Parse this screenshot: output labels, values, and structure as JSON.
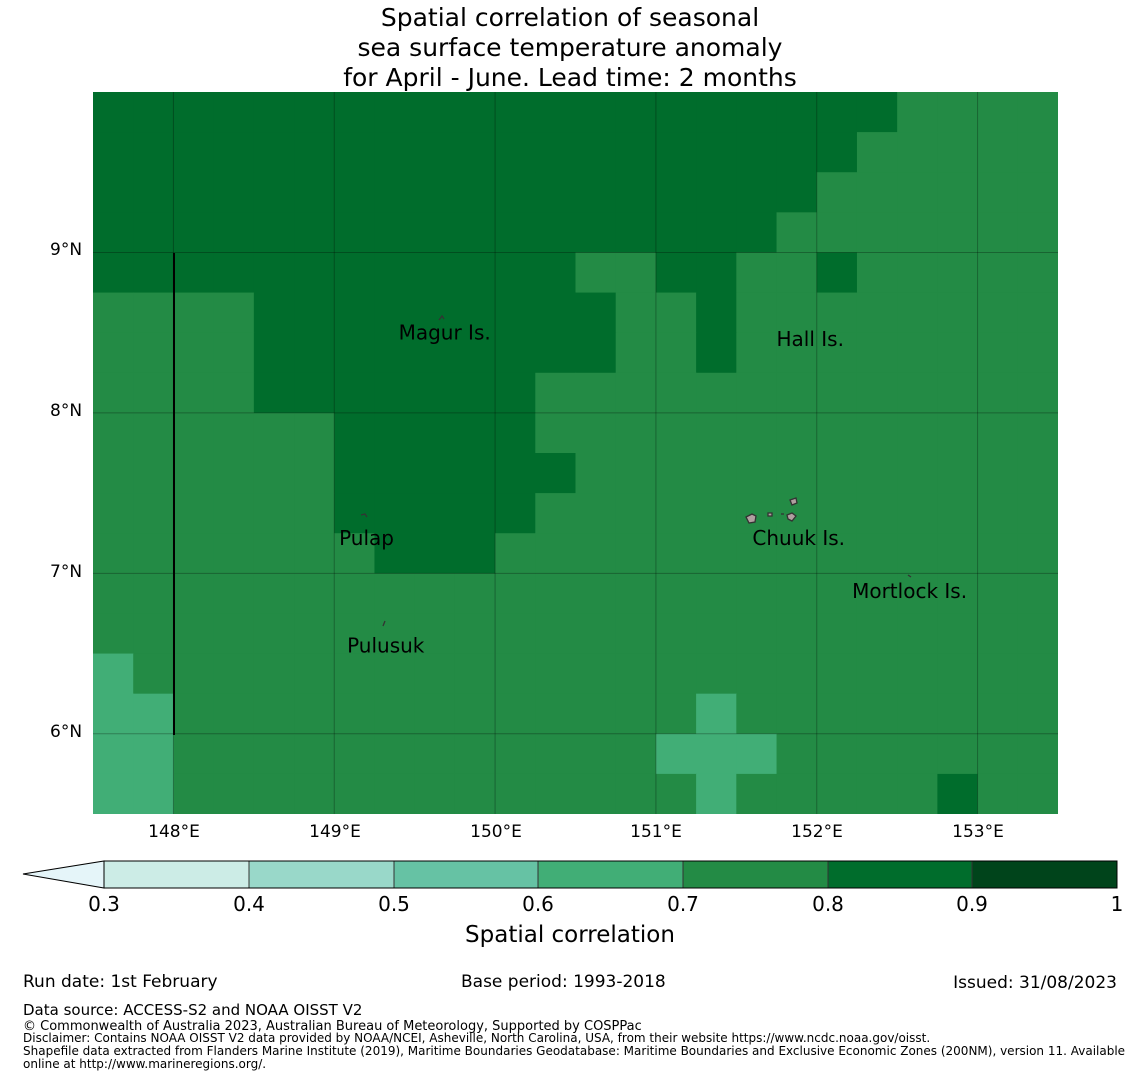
{
  "title": {
    "line1": "Spatial correlation of seasonal",
    "line2": "sea surface temperature anomaly",
    "line3": "for April - June. Lead time: 2 months"
  },
  "colors": {
    "c08_09": "#006d2c",
    "c07_08": "#238b45",
    "c06_07": "#41ae76",
    "c05_06": "#66c2a4",
    "c04_05": "#99d8c9",
    "c03_04": "#ccece6",
    "below": "#e5f5f9",
    "c09_10": "#00441b"
  },
  "grid": {
    "lon_start": 147.5,
    "lat_top": 10.0,
    "cell_deg": 0.25,
    "cols": 24,
    "rows": 18,
    "class_legend": {
      "H": "0.8-0.9",
      "M": "0.7-0.8",
      "L": "0.6-0.7"
    },
    "cells": [
      "HHHHHHHHHHHHHHHHHHHHMMMM",
      "HHHHHHHHHHHHHHHHHHHMMMMM",
      "HHHHHHHHHHHHHHHHHHMMMMMM",
      "HHHHHHHHHHHHHHHHHMMMMMMM",
      "HHHHHHHHHHHHMMHHMMHMMMMM",
      "MMMMHHHHHHHHHMMHMMMMMMMM",
      "MMMMHHHHHHHHHMMHMMMMMMMM",
      "MMMMHHHHHHHMMMMMMMMMMMMM",
      "MMMMMMHHHHHMMMMMMMMMMMMM",
      "MMMMMMHHHHHHMMMMMMMMMMMM",
      "MMMMMMHHHHHMMMMMMMMMMMMM",
      "MMMMMMMHHHMMMMMMMMMMMMMM",
      "MMMMMMMMMMMMMMMMMMMMMMMM",
      "MMMMMMMMMMMMMMMMMMMMMMMM",
      "LMMMMMMMMMMMMMMMMMMMMMMM",
      "LLMMMMMMMMMMMMMLMMMMMMMM",
      "LLMMMMMMMMMMMMLLLMMMMMMM",
      "LLMMMMMMMMMMMMMLMMMMMHMM"
    ]
  },
  "axes": {
    "x_ticks": [
      "148°E",
      "149°E",
      "150°E",
      "151°E",
      "152°E",
      "153°E"
    ],
    "x_values": [
      148,
      149,
      150,
      151,
      152,
      153
    ],
    "y_ticks": [
      "9°N",
      "8°N",
      "7°N",
      "6°N"
    ],
    "y_values": [
      9,
      8,
      7,
      6
    ],
    "lon_range": [
      147.5,
      153.5
    ],
    "lat_range": [
      5.5,
      10.0
    ]
  },
  "places": [
    {
      "name": "Magur Is.",
      "lon": 149.4,
      "lat": 8.5
    },
    {
      "name": "Hall Is.",
      "lon": 151.75,
      "lat": 8.46
    },
    {
      "name": "Pulap",
      "lon": 149.03,
      "lat": 7.22
    },
    {
      "name": "Chuuk Is.",
      "lon": 151.6,
      "lat": 7.22
    },
    {
      "name": "Mortlock Is.",
      "lon": 152.22,
      "lat": 6.89
    },
    {
      "name": "Pulusuk",
      "lon": 149.08,
      "lat": 6.55
    }
  ],
  "colorbar": {
    "labels": [
      "0.3",
      "0.4",
      "0.5",
      "0.6",
      "0.7",
      "0.8",
      "0.9",
      "1"
    ],
    "title": "Spatial correlation"
  },
  "footer": {
    "run_date": "Run date: 1st February",
    "base_period": "Base period: 1993-2018",
    "issued": "Issued: 31/08/2023",
    "data_source": "Data source: ACCESS-S2 and NOAA OISST V2",
    "copyright": "© Commonwealth of Australia 2023, Australian Bureau of Meteorology, Supported by COSPPac",
    "disclaimer": "Disclaimer: Contains NOAA OISST V2 data provided by NOAA/NCEI, Asheville, North Carolina, USA, from their website https://www.ncdc.noaa.gov/oisst.",
    "shapefile1": "Shapefile data extracted from Flanders Marine Institute (2019), Maritime Boundaries Geodatabase: Maritime Boundaries and Exclusive Economic Zones (200NM), version 11. Available",
    "shapefile2": "online at http://www.marineregions.org/."
  }
}
